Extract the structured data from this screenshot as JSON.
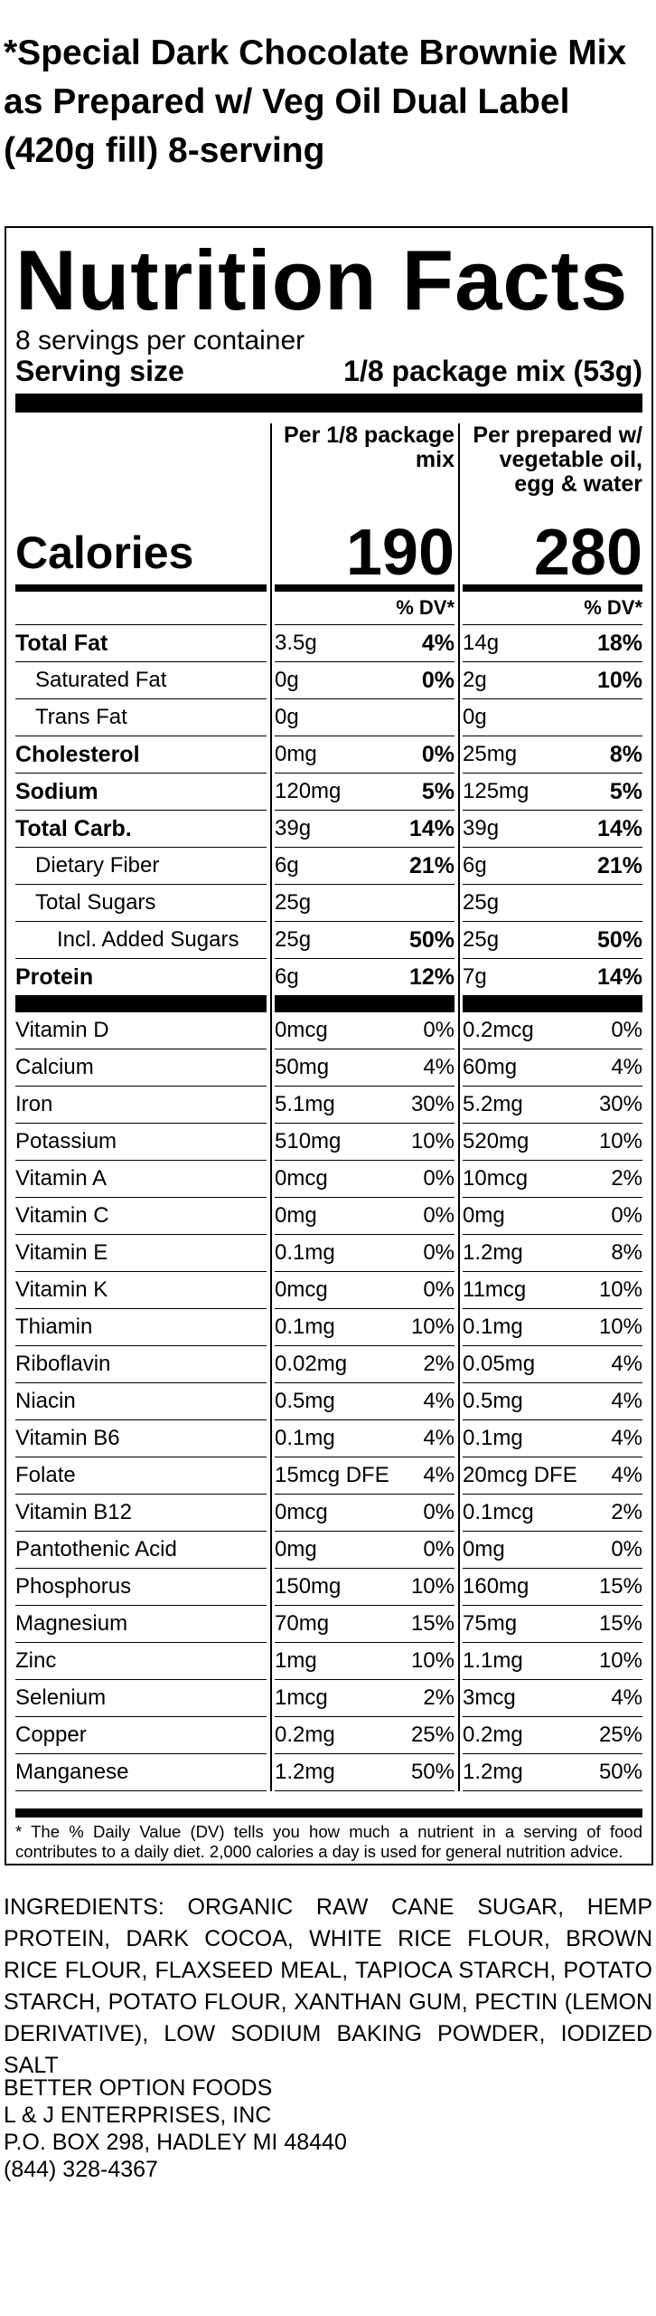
{
  "title": "*Special Dark Chocolate Brownie Mix as Prepared w/ Veg Oil Dual Label (420g fill) 8-serving",
  "label": {
    "heading": "Nutrition Facts",
    "servings": "8 servings per container",
    "serving_size_label": "Serving size",
    "serving_size": "1/8 package mix (53g)",
    "columns": [
      "Per 1/8 package mix",
      "Per prepared w/ vegetable oil, egg & water"
    ],
    "calories_label": "Calories",
    "calories": [
      190,
      280
    ],
    "dv_header": [
      "% DV*",
      "% DV*"
    ],
    "nutrients": [
      {
        "name": "Total Fat",
        "values": [
          [
            "3.5g",
            "4%"
          ],
          [
            "14g",
            "18%"
          ]
        ]
      },
      {
        "name": "Saturated Fat",
        "values": [
          [
            "0g",
            "0%"
          ],
          [
            "2g",
            "10%"
          ]
        ]
      },
      {
        "name": "Trans Fat",
        "values": [
          [
            "0g"
          ],
          [
            "0g"
          ]
        ]
      },
      {
        "name": "Cholesterol",
        "values": [
          [
            "0mg",
            "0%"
          ],
          [
            "25mg",
            "8%"
          ]
        ]
      },
      {
        "name": "Sodium",
        "values": [
          [
            "120mg",
            "5%"
          ],
          [
            "125mg",
            "5%"
          ]
        ]
      },
      {
        "name": "Total Carb.",
        "values": [
          [
            "39g",
            "14%"
          ],
          [
            "39g",
            "14%"
          ]
        ]
      },
      {
        "name": "Dietary Fiber",
        "values": [
          [
            "6g",
            "21%"
          ],
          [
            "6g",
            "21%"
          ]
        ]
      },
      {
        "name": "Total Sugars",
        "values": [
          [
            "25g"
          ],
          [
            "25g"
          ]
        ]
      },
      {
        "name": "Incl. Added Sugars",
        "values": [
          [
            "25g",
            "50%"
          ],
          [
            "25g",
            "50%"
          ]
        ]
      },
      {
        "name": "Protein",
        "values": [
          [
            "6g",
            "12%"
          ],
          [
            "7g",
            "14%"
          ]
        ]
      }
    ],
    "vitamins": [
      {
        "name": "Vitamin D",
        "values": [
          [
            "0mcg",
            "0%"
          ],
          [
            "0.2mcg",
            "0%"
          ]
        ]
      },
      {
        "name": "Calcium",
        "values": [
          [
            "50mg",
            "4%"
          ],
          [
            "60mg",
            "4%"
          ]
        ]
      },
      {
        "name": "Iron",
        "values": [
          [
            "5.1mg",
            "30%"
          ],
          [
            "5.2mg",
            "30%"
          ]
        ]
      },
      {
        "name": "Potassium",
        "values": [
          [
            "510mg",
            "10%"
          ],
          [
            "520mg",
            "10%"
          ]
        ]
      },
      {
        "name": "Vitamin A",
        "values": [
          [
            "0mcg",
            "0%"
          ],
          [
            "10mcg",
            "2%"
          ]
        ]
      },
      {
        "name": "Vitamin C",
        "values": [
          [
            "0mg",
            "0%"
          ],
          [
            "0mg",
            "0%"
          ]
        ]
      },
      {
        "name": "Vitamin E",
        "values": [
          [
            "0.1mg",
            "0%"
          ],
          [
            "1.2mg",
            "8%"
          ]
        ]
      },
      {
        "name": "Vitamin K",
        "values": [
          [
            "0mcg",
            "0%"
          ],
          [
            "11mcg",
            "10%"
          ]
        ]
      },
      {
        "name": "Thiamin",
        "values": [
          [
            "0.1mg",
            "10%"
          ],
          [
            "0.1mg",
            "10%"
          ]
        ]
      },
      {
        "name": "Riboflavin",
        "values": [
          [
            "0.02mg",
            "2%"
          ],
          [
            "0.05mg",
            "4%"
          ]
        ]
      },
      {
        "name": "Niacin",
        "values": [
          [
            "0.5mg",
            "4%"
          ],
          [
            "0.5mg",
            "4%"
          ]
        ]
      },
      {
        "name": "Vitamin B6",
        "values": [
          [
            "0.1mg",
            "4%"
          ],
          [
            "0.1mg",
            "4%"
          ]
        ]
      },
      {
        "name": "Folate",
        "values": [
          [
            "15mcg DFE",
            "4%"
          ],
          [
            "20mcg DFE",
            "4%"
          ]
        ]
      },
      {
        "name": "Vitamin B12",
        "values": [
          [
            "0mcg",
            "0%"
          ],
          [
            "0.1mcg",
            "2%"
          ]
        ]
      },
      {
        "name": "Pantothenic Acid",
        "values": [
          [
            "0mg",
            "0%"
          ],
          [
            "0mg",
            "0%"
          ]
        ]
      },
      {
        "name": "Phosphorus",
        "values": [
          [
            "150mg",
            "10%"
          ],
          [
            "160mg",
            "15%"
          ]
        ]
      },
      {
        "name": "Magnesium",
        "values": [
          [
            "70mg",
            "15%"
          ],
          [
            "75mg",
            "15%"
          ]
        ]
      },
      {
        "name": "Zinc",
        "values": [
          [
            "1mg",
            "10%"
          ],
          [
            "1.1mg",
            "10%"
          ]
        ]
      },
      {
        "name": "Selenium",
        "values": [
          [
            "1mcg",
            "2%"
          ],
          [
            "3mcg",
            "4%"
          ]
        ]
      },
      {
        "name": "Copper",
        "values": [
          [
            "0.2mg",
            "25%"
          ],
          [
            "0.2mg",
            "25%"
          ]
        ]
      },
      {
        "name": "Manganese",
        "values": [
          [
            "1.2mg",
            "50%"
          ],
          [
            "1.2mg",
            "50%"
          ]
        ]
      }
    ],
    "footnote": "* The % Daily Value (DV) tells you how much a nutrient in a serving of food contributes to a daily diet. 2,000 calories a day is used for general nutrition advice."
  },
  "ingredients": "INGREDIENTS: ORGANIC RAW CANE SUGAR, HEMP PROTEIN, DARK COCOA, WHITE RICE FLOUR, BROWN RICE FLOUR, FLAXSEED MEAL, TAPIOCA STARCH, POTATO STARCH, POTATO FLOUR, XANTHAN GUM, PECTIN (LEMON DERIVATIVE), LOW SODIUM BAKING POWDER, IODIZED SALT",
  "address": [
    "BETTER OPTION FOODS",
    "L & J ENTERPRISES, INC",
    "P.O. BOX 298, HADLEY MI 48440",
    "(844) 328-4367"
  ]
}
